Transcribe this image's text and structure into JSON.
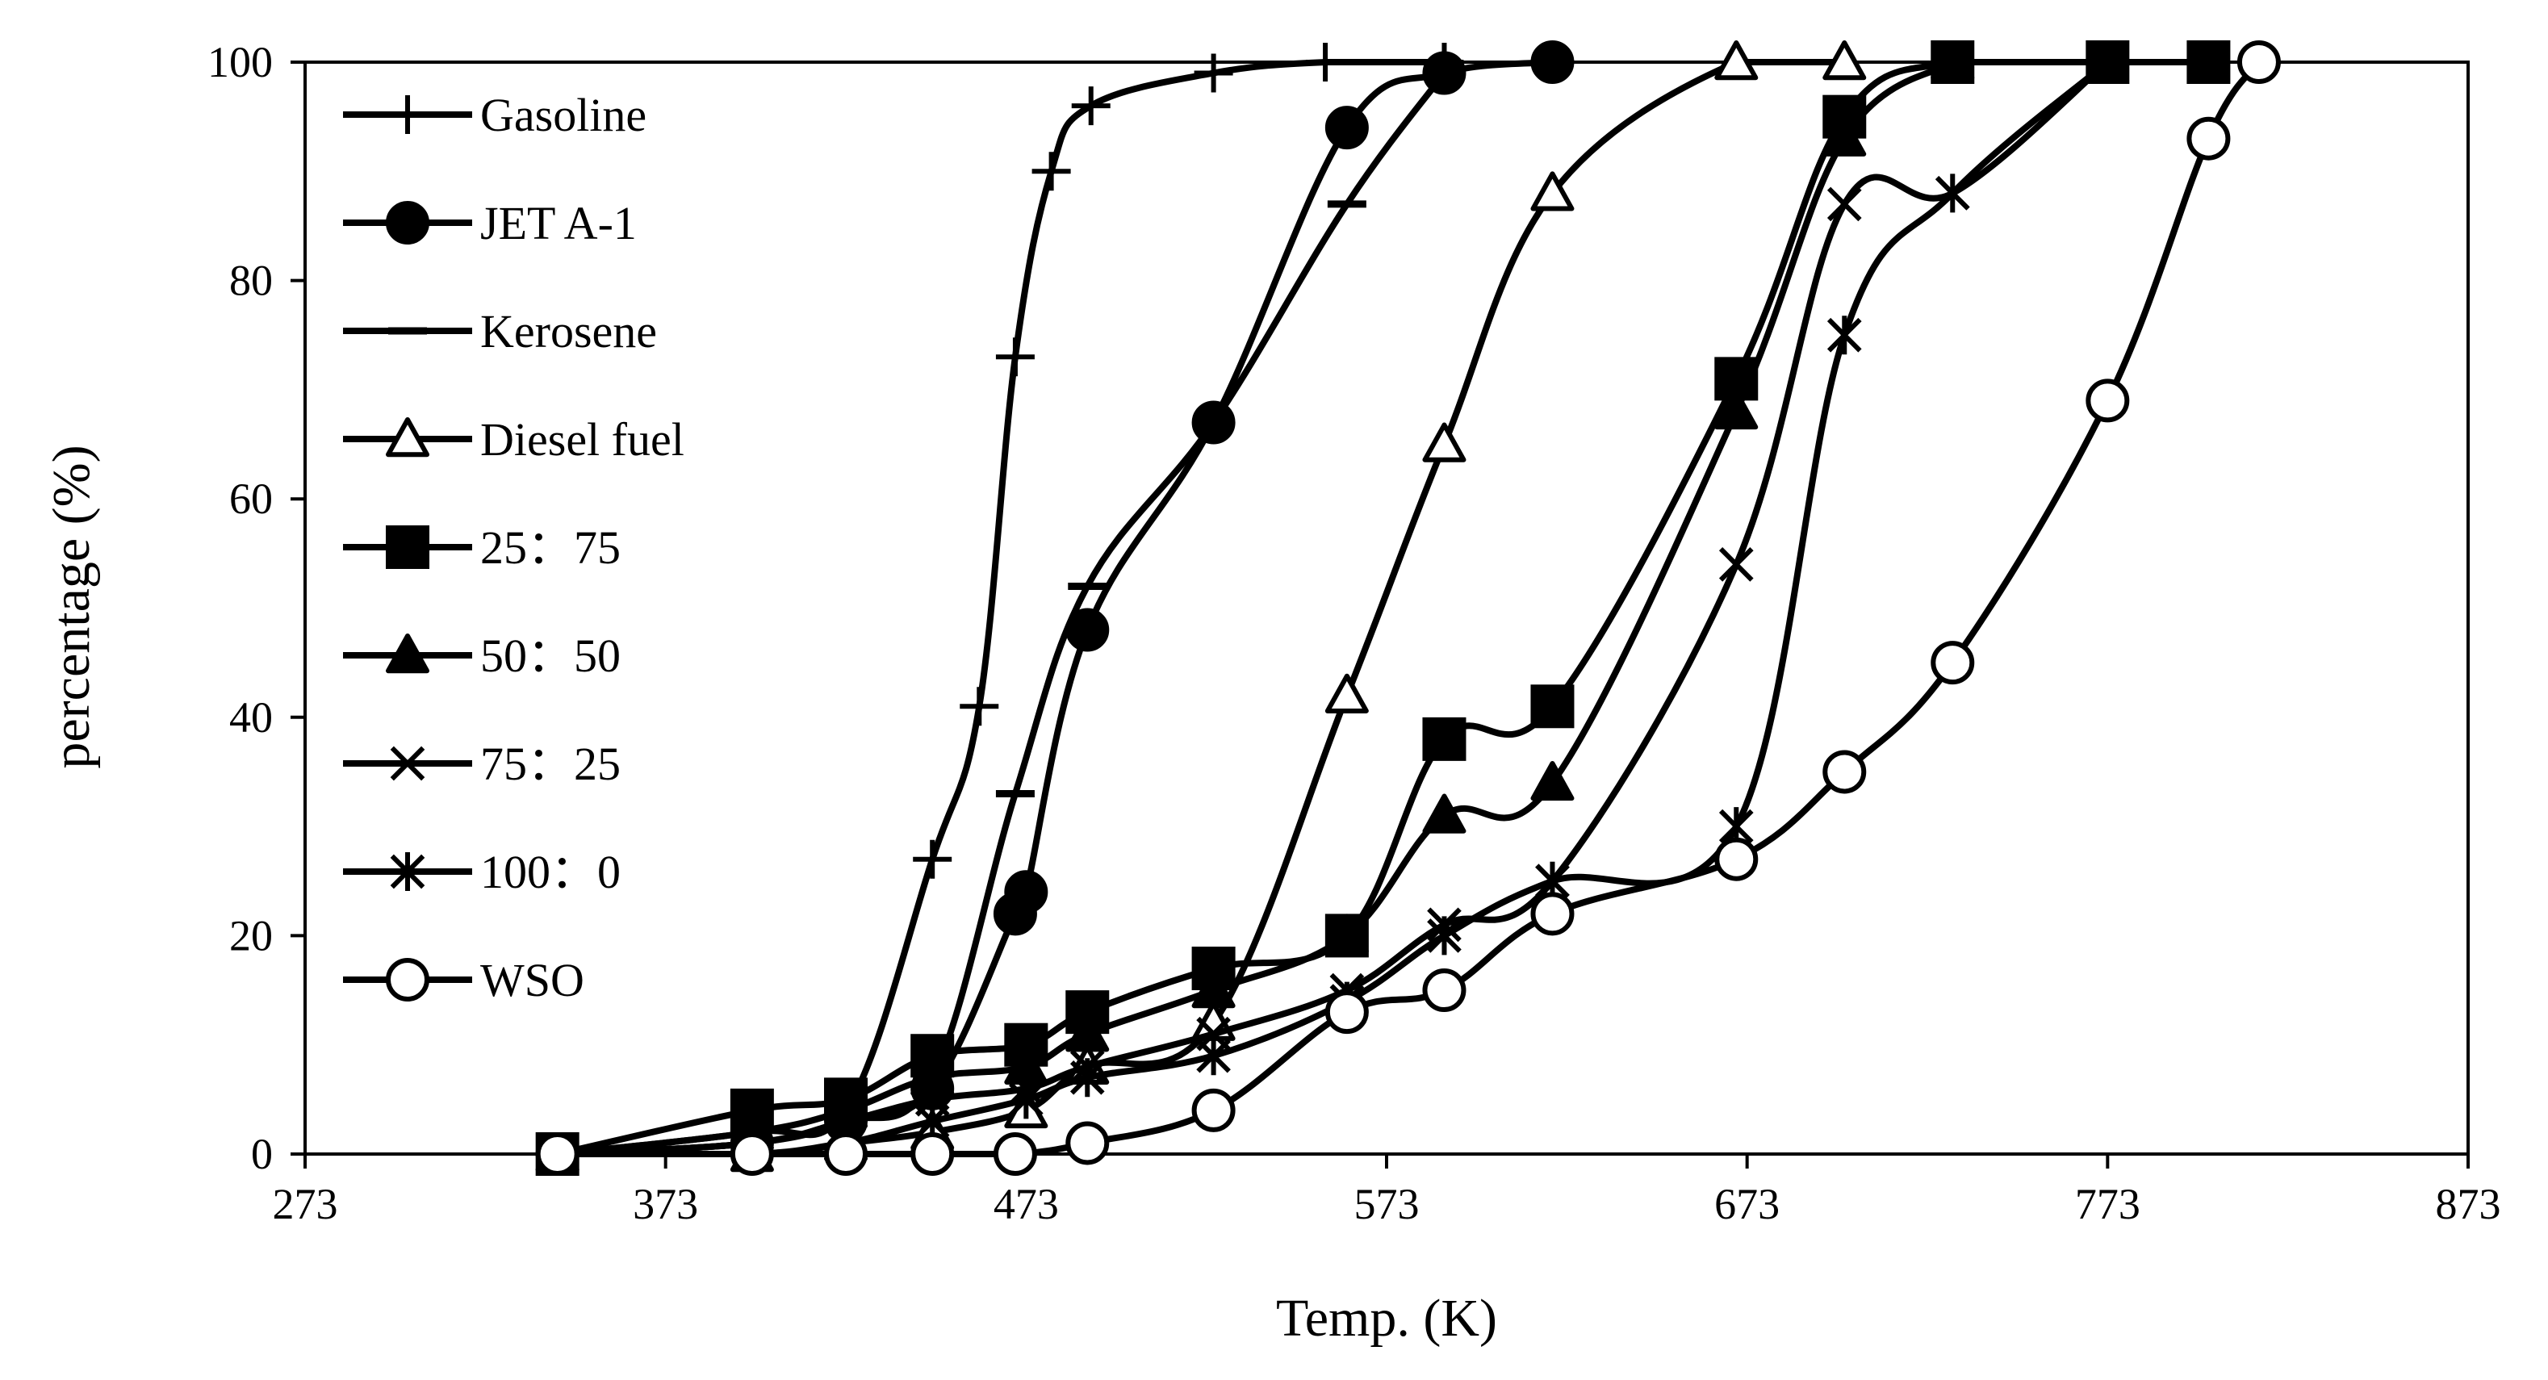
{
  "chart_data": {
    "type": "line",
    "title": "",
    "xlabel": "Temp. (K)",
    "ylabel": "percentage (%)",
    "xlim": [
      273,
      873
    ],
    "ylim": [
      0,
      100
    ],
    "xticks": [
      273,
      373,
      473,
      573,
      673,
      773,
      873
    ],
    "yticks": [
      0,
      20,
      40,
      60,
      80,
      100
    ],
    "grid": false,
    "legend_position": "top-left",
    "series": [
      {
        "name": "Gasoline",
        "marker": "plus",
        "x": [
          343,
          397,
          423,
          447,
          460,
          470,
          480,
          491,
          525,
          556,
          589
        ],
        "y": [
          0,
          2,
          4,
          27,
          41,
          73,
          90,
          96,
          99,
          100,
          100
        ]
      },
      {
        "name": "JET A-1",
        "marker": "circle-filled",
        "x": [
          343,
          397,
          423,
          447,
          470,
          473,
          490,
          525,
          562,
          589,
          619
        ],
        "y": [
          0,
          1,
          3,
          6,
          22,
          24,
          48,
          67,
          94,
          99,
          100
        ]
      },
      {
        "name": "Kerosene",
        "marker": "dash",
        "x": [
          343,
          397,
          423,
          447,
          470,
          490,
          525,
          562,
          589
        ],
        "y": [
          0,
          1,
          3,
          7,
          33,
          52,
          67,
          87,
          99
        ]
      },
      {
        "name": "Diesel fuel",
        "marker": "triangle-open",
        "x": [
          343,
          397,
          423,
          447,
          473,
          490,
          525,
          562,
          589,
          619,
          670,
          700
        ],
        "y": [
          0,
          0,
          1,
          2,
          4,
          8,
          12,
          42,
          65,
          88,
          100,
          100
        ]
      },
      {
        "name": "25：75",
        "marker": "square-filled",
        "x": [
          343,
          397,
          423,
          447,
          473,
          490,
          525,
          562,
          589,
          619,
          670,
          700,
          730,
          773,
          801
        ],
        "y": [
          0,
          4,
          5,
          9,
          10,
          13,
          17,
          20,
          38,
          41,
          71,
          95,
          100,
          100,
          100
        ]
      },
      {
        "name": "50：50",
        "marker": "triangle-filled",
        "x": [
          343,
          397,
          423,
          447,
          473,
          490,
          525,
          562,
          589,
          619,
          670,
          700,
          730
        ],
        "y": [
          0,
          2,
          4,
          7,
          8,
          11,
          15,
          20,
          31,
          34,
          68,
          93,
          100
        ]
      },
      {
        "name": "75：25",
        "marker": "cross",
        "x": [
          343,
          397,
          423,
          447,
          473,
          490,
          525,
          562,
          589,
          619,
          670,
          700,
          730,
          773
        ],
        "y": [
          0,
          1,
          3,
          5,
          6,
          8,
          11,
          15,
          21,
          25,
          54,
          87,
          88,
          100
        ]
      },
      {
        "name": "100：0",
        "marker": "asterisk",
        "x": [
          343,
          397,
          423,
          447,
          473,
          490,
          525,
          562,
          589,
          619,
          670,
          700,
          730,
          773
        ],
        "y": [
          0,
          0,
          1,
          3,
          5,
          7,
          9,
          14,
          20,
          25,
          30,
          75,
          88,
          100
        ]
      },
      {
        "name": "WSO",
        "marker": "circle-open",
        "x": [
          343,
          397,
          423,
          447,
          470,
          490,
          525,
          562,
          589,
          619,
          670,
          700,
          730,
          773,
          801,
          815
        ],
        "y": [
          0,
          0,
          0,
          0,
          0,
          1,
          4,
          13,
          15,
          22,
          27,
          35,
          45,
          69,
          93,
          100
        ]
      }
    ]
  }
}
